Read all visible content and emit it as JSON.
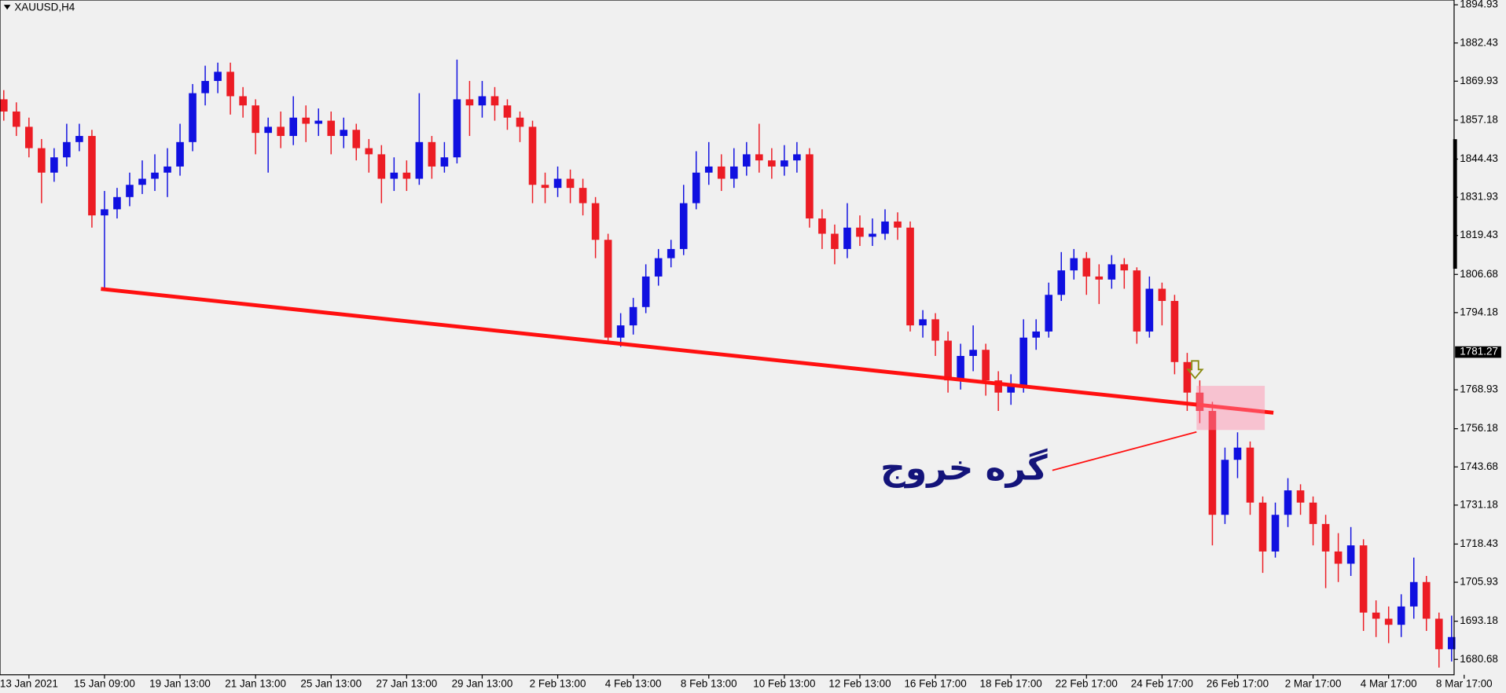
{
  "chart_data": {
    "type": "candlestick",
    "title": "XAUUSD,H4",
    "bull_color": "#1010e0",
    "bear_color": "#ec1c24",
    "xlim": [
      -0.3,
      115.2
    ],
    "ylim": [
      1675.65,
      1896.5
    ],
    "xticks": [
      {
        "value": 2,
        "label": "13 Jan 2021"
      },
      {
        "value": 8,
        "label": "15 Jan 09:00"
      },
      {
        "value": 14,
        "label": "19 Jan 13:00"
      },
      {
        "value": 20,
        "label": "21 Jan 13:00"
      },
      {
        "value": 26,
        "label": "25 Jan 13:00"
      },
      {
        "value": 32,
        "label": "27 Jan 13:00"
      },
      {
        "value": 38,
        "label": "29 Jan 13:00"
      },
      {
        "value": 44,
        "label": "2 Feb 13:00"
      },
      {
        "value": 50,
        "label": "4 Feb 13:00"
      },
      {
        "value": 56,
        "label": "8 Feb 13:00"
      },
      {
        "value": 62,
        "label": "10 Feb 13:00"
      },
      {
        "value": 68,
        "label": "12 Feb 13:00"
      },
      {
        "value": 74,
        "label": "16 Feb 17:00"
      },
      {
        "value": 80,
        "label": "18 Feb 17:00"
      },
      {
        "value": 86,
        "label": "22 Feb 17:00"
      },
      {
        "value": 92,
        "label": "24 Feb 17:00"
      },
      {
        "value": 98,
        "label": "26 Feb 17:00"
      },
      {
        "value": 104,
        "label": "2 Mar 17:00"
      },
      {
        "value": 110,
        "label": "4 Mar 17:00"
      },
      {
        "value": 116,
        "label": "8 Mar 17:00"
      }
    ],
    "yticks": [
      1894.93,
      1882.43,
      1869.93,
      1857.18,
      1844.43,
      1831.93,
      1819.43,
      1806.68,
      1794.18,
      1768.93,
      1756.18,
      1743.68,
      1731.18,
      1718.43,
      1705.93,
      1693.18,
      1680.68
    ],
    "last_price": 1781.27,
    "annotation": "گره خروج",
    "ohlc": [
      [
        1864,
        1867,
        1857,
        1860
      ],
      [
        1860,
        1863,
        1852,
        1855
      ],
      [
        1855,
        1858,
        1845,
        1848
      ],
      [
        1848,
        1851,
        1830,
        1840
      ],
      [
        1840,
        1848,
        1837,
        1845
      ],
      [
        1845,
        1856,
        1842,
        1850
      ],
      [
        1850,
        1856,
        1847,
        1852
      ],
      [
        1852,
        1854,
        1822,
        1826
      ],
      [
        1826,
        1834,
        1802,
        1828
      ],
      [
        1828,
        1835,
        1825,
        1832
      ],
      [
        1832,
        1840,
        1829,
        1836
      ],
      [
        1836,
        1844,
        1833,
        1838
      ],
      [
        1838,
        1846,
        1834,
        1840
      ],
      [
        1840,
        1848,
        1832,
        1842
      ],
      [
        1842,
        1856,
        1839,
        1850
      ],
      [
        1850,
        1869,
        1847,
        1866
      ],
      [
        1866,
        1875,
        1862,
        1870
      ],
      [
        1870,
        1876,
        1866,
        1873
      ],
      [
        1873,
        1876,
        1859,
        1865
      ],
      [
        1865,
        1868,
        1858,
        1862
      ],
      [
        1862,
        1864,
        1846,
        1853
      ],
      [
        1853,
        1858,
        1840,
        1855
      ],
      [
        1855,
        1860,
        1848,
        1852
      ],
      [
        1852,
        1865,
        1849,
        1858
      ],
      [
        1858,
        1862,
        1850,
        1856
      ],
      [
        1856,
        1861,
        1852,
        1857
      ],
      [
        1857,
        1860,
        1846,
        1852
      ],
      [
        1852,
        1858,
        1848,
        1854
      ],
      [
        1854,
        1856,
        1844,
        1848
      ],
      [
        1848,
        1851,
        1840,
        1846
      ],
      [
        1846,
        1849,
        1830,
        1838
      ],
      [
        1838,
        1845,
        1834,
        1840
      ],
      [
        1840,
        1844,
        1834,
        1838
      ],
      [
        1838,
        1866,
        1836,
        1850
      ],
      [
        1850,
        1852,
        1838,
        1842
      ],
      [
        1842,
        1850,
        1840,
        1845
      ],
      [
        1845,
        1877,
        1843,
        1864
      ],
      [
        1864,
        1870,
        1852,
        1862
      ],
      [
        1862,
        1870,
        1858,
        1865
      ],
      [
        1865,
        1868,
        1857,
        1862
      ],
      [
        1862,
        1864,
        1854,
        1858
      ],
      [
        1858,
        1860,
        1850,
        1855
      ],
      [
        1855,
        1857,
        1830,
        1836
      ],
      [
        1836,
        1840,
        1830,
        1835
      ],
      [
        1835,
        1842,
        1832,
        1838
      ],
      [
        1838,
        1841,
        1830,
        1835
      ],
      [
        1835,
        1838,
        1826,
        1830
      ],
      [
        1830,
        1832,
        1812,
        1818
      ],
      [
        1818,
        1820,
        1784,
        1786
      ],
      [
        1786,
        1794,
        1783,
        1790
      ],
      [
        1790,
        1799,
        1787,
        1796
      ],
      [
        1796,
        1810,
        1794,
        1806
      ],
      [
        1806,
        1815,
        1803,
        1812
      ],
      [
        1812,
        1818,
        1809,
        1815
      ],
      [
        1815,
        1836,
        1813,
        1830
      ],
      [
        1830,
        1847,
        1828,
        1840
      ],
      [
        1840,
        1850,
        1836,
        1842
      ],
      [
        1842,
        1846,
        1834,
        1838
      ],
      [
        1838,
        1848,
        1835,
        1842
      ],
      [
        1842,
        1850,
        1839,
        1846
      ],
      [
        1846,
        1856,
        1840,
        1844
      ],
      [
        1844,
        1848,
        1838,
        1842
      ],
      [
        1842,
        1849,
        1839,
        1844
      ],
      [
        1844,
        1850,
        1840,
        1846
      ],
      [
        1846,
        1848,
        1822,
        1825
      ],
      [
        1825,
        1828,
        1815,
        1820
      ],
      [
        1820,
        1823,
        1810,
        1815
      ],
      [
        1815,
        1830,
        1812,
        1822
      ],
      [
        1822,
        1826,
        1816,
        1819
      ],
      [
        1819,
        1825,
        1816,
        1820
      ],
      [
        1820,
        1828,
        1818,
        1824
      ],
      [
        1824,
        1827,
        1818,
        1822
      ],
      [
        1822,
        1824,
        1788,
        1790
      ],
      [
        1790,
        1795,
        1786,
        1792
      ],
      [
        1792,
        1794,
        1780,
        1785
      ],
      [
        1785,
        1788,
        1768,
        1772
      ],
      [
        1772,
        1784,
        1769,
        1780
      ],
      [
        1780,
        1790,
        1775,
        1782
      ],
      [
        1782,
        1784,
        1767,
        1772
      ],
      [
        1772,
        1775,
        1762,
        1768
      ],
      [
        1768,
        1774,
        1764,
        1770
      ],
      [
        1770,
        1792,
        1768,
        1786
      ],
      [
        1786,
        1792,
        1782,
        1788
      ],
      [
        1788,
        1804,
        1786,
        1800
      ],
      [
        1800,
        1814,
        1798,
        1808
      ],
      [
        1808,
        1815,
        1805,
        1812
      ],
      [
        1812,
        1814,
        1800,
        1806
      ],
      [
        1806,
        1810,
        1797,
        1805
      ],
      [
        1805,
        1813,
        1802,
        1810
      ],
      [
        1810,
        1812,
        1802,
        1808
      ],
      [
        1808,
        1809,
        1784,
        1788
      ],
      [
        1788,
        1806,
        1786,
        1802
      ],
      [
        1802,
        1804,
        1790,
        1798
      ],
      [
        1798,
        1800,
        1774,
        1778
      ],
      [
        1778,
        1781,
        1762,
        1768
      ],
      [
        1768,
        1772,
        1758,
        1762
      ],
      [
        1762,
        1765,
        1718,
        1728
      ],
      [
        1728,
        1750,
        1725,
        1746
      ],
      [
        1746,
        1755,
        1740,
        1750
      ],
      [
        1750,
        1752,
        1728,
        1732
      ],
      [
        1732,
        1734,
        1709,
        1716
      ],
      [
        1716,
        1732,
        1714,
        1728
      ],
      [
        1728,
        1740,
        1724,
        1736
      ],
      [
        1736,
        1738,
        1728,
        1732
      ],
      [
        1732,
        1734,
        1718,
        1725
      ],
      [
        1725,
        1728,
        1704,
        1716
      ],
      [
        1716,
        1722,
        1706,
        1712
      ],
      [
        1712,
        1724,
        1708,
        1718
      ],
      [
        1718,
        1720,
        1690,
        1696
      ],
      [
        1696,
        1700,
        1688,
        1694
      ],
      [
        1694,
        1698,
        1686,
        1692
      ],
      [
        1692,
        1702,
        1688,
        1698
      ],
      [
        1698,
        1714,
        1694,
        1706
      ],
      [
        1706,
        1708,
        1690,
        1694
      ],
      [
        1694,
        1696,
        1678,
        1684
      ],
      [
        1684,
        1695,
        1680,
        1688
      ]
    ]
  }
}
